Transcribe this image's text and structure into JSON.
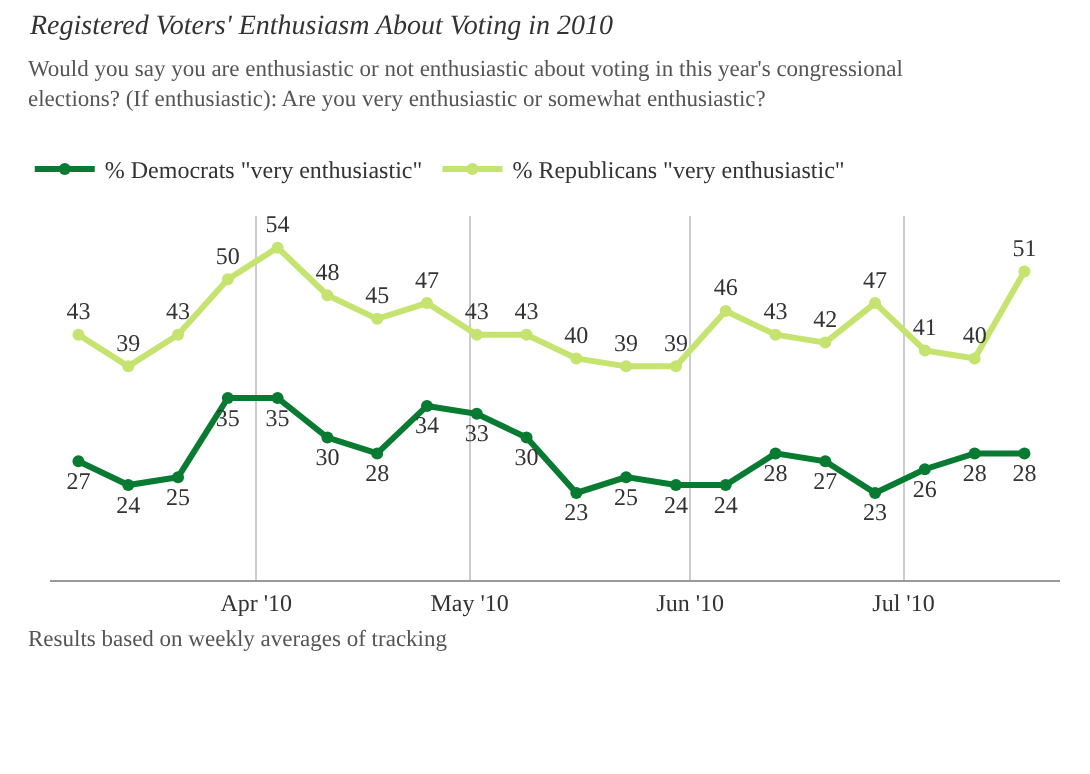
{
  "chart_data": {
    "type": "line",
    "title": "Registered Voters' Enthusiasm About Voting in 2010",
    "subtitle": "Would you say you are enthusiastic or not enthusiastic about voting in this year's congressional elections? (If enthusiastic): Are you very enthusiastic or somewhat enthusiastic?",
    "x": [
      "2010-03-07",
      "2010-03-14",
      "2010-03-21",
      "2010-03-28",
      "2010-04-04",
      "2010-04-11",
      "2010-04-18",
      "2010-04-25",
      "2010-05-02",
      "2010-05-09",
      "2010-05-16",
      "2010-05-23",
      "2010-05-30",
      "2010-06-06",
      "2010-06-13",
      "2010-06-20",
      "2010-06-27",
      "2010-07-04",
      "2010-07-11",
      "2010-07-18"
    ],
    "series": [
      {
        "name": "% Democrats \"very enthusiastic\"",
        "color": "#087a31",
        "values": [
          27,
          24,
          25,
          35,
          35,
          30,
          28,
          34,
          33,
          30,
          23,
          25,
          24,
          24,
          28,
          27,
          23,
          26,
          28,
          28
        ]
      },
      {
        "name": "% Republicans \"very enthusiastic\"",
        "color": "#c5e36f",
        "values": [
          43,
          39,
          43,
          50,
          54,
          48,
          45,
          47,
          43,
          43,
          40,
          39,
          39,
          46,
          43,
          42,
          47,
          41,
          40,
          51
        ]
      }
    ],
    "xlim": [
      "2010-03-03",
      "2010-07-23"
    ],
    "xticks": [
      {
        "value": "2010-04-01",
        "label": "Apr '10"
      },
      {
        "value": "2010-05-01",
        "label": "May '10"
      },
      {
        "value": "2010-06-01",
        "label": "Jun '10"
      },
      {
        "value": "2010-07-01",
        "label": "Jul '10"
      }
    ],
    "ylim": [
      12,
      58
    ],
    "tick_labels": "x",
    "grid": "x",
    "legend": "top left",
    "marker": "circle",
    "line_style": "solid",
    "data_labels": true,
    "annotations": [
      "Results based on weekly averages of tracking"
    ]
  }
}
